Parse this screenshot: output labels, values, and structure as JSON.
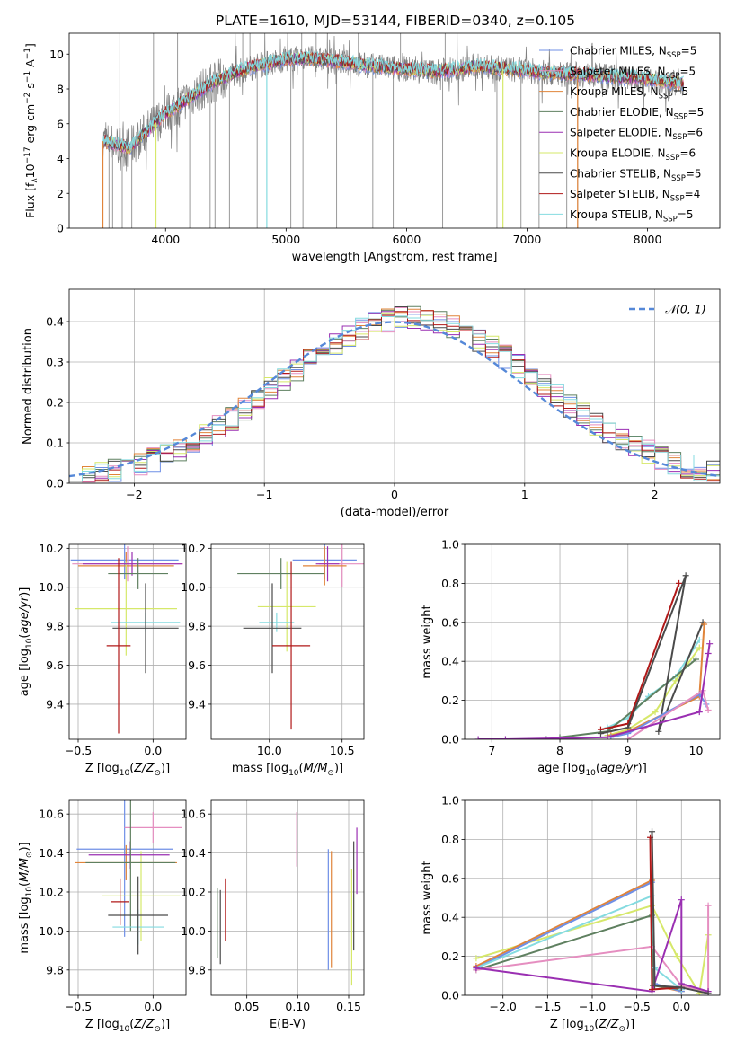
{
  "figure": {
    "title": "PLATE=1610, MJD=53144, FIBERID=0340, z=0.105"
  },
  "colors": {
    "chabrier_miles": "#6f8fe6",
    "salpeter_miles": "#e58ec0",
    "kroupa_miles": "#e0843a",
    "chabrier_elodie": "#5f8060",
    "salpeter_elodie": "#9a2fb2",
    "kroupa_elodie": "#d6e86a",
    "chabrier_stelib": "#4a4a4a",
    "salpeter_stelib": "#b01818",
    "kroupa_stelib": "#85dbe0",
    "gaussian": "#5588d8"
  },
  "chart_data": [
    {
      "id": "spectrum",
      "type": "line",
      "xlabel": "wavelength [Angstrom, rest frame]",
      "ylabel": "Flux [f_λ10^-17 erg cm^-2 s^-1 A^-1]",
      "xlim": [
        3200,
        8600
      ],
      "ylim": [
        0,
        11.2
      ],
      "xticks": [
        4000,
        5000,
        6000,
        7000,
        8000
      ],
      "yticks": [
        0,
        2,
        4,
        6,
        8,
        10
      ],
      "legend_position": "right",
      "legend": [
        {
          "text": "Chabrier MILES, N",
          "sub": "SSP",
          "tail": "=5",
          "color": "#6f8fe6"
        },
        {
          "text": "Salpeter MILES, N",
          "sub": "SSP",
          "tail": "=5",
          "color": "#e58ec0"
        },
        {
          "text": "Kroupa MILES, N",
          "sub": "SSP",
          "tail": "=5",
          "color": "#e0843a"
        },
        {
          "text": "Chabrier ELODIE, N",
          "sub": "SSP",
          "tail": "=5",
          "color": "#5f8060"
        },
        {
          "text": "Salpeter ELODIE, N",
          "sub": "SSP",
          "tail": "=6",
          "color": "#9a2fb2"
        },
        {
          "text": "Kroupa ELODIE, N",
          "sub": "SSP",
          "tail": "=6",
          "color": "#d6e86a"
        },
        {
          "text": "Chabrier STELIB, N",
          "sub": "SSP",
          "tail": "=5",
          "color": "#4a4a4a"
        },
        {
          "text": "Salpeter STELIB, N",
          "sub": "SSP",
          "tail": "=4",
          "color": "#b01818"
        },
        {
          "text": "Kroupa STELIB, N",
          "sub": "SSP",
          "tail": "=5",
          "color": "#85dbe0"
        }
      ],
      "continuum": [
        [
          3480,
          5.0
        ],
        [
          3700,
          4.6
        ],
        [
          3850,
          5.6
        ],
        [
          4000,
          6.6
        ],
        [
          4200,
          7.5
        ],
        [
          4400,
          8.4
        ],
        [
          4600,
          9.0
        ],
        [
          4800,
          9.4
        ],
        [
          5000,
          9.7
        ],
        [
          5200,
          9.75
        ],
        [
          5400,
          9.6
        ],
        [
          5600,
          9.4
        ],
        [
          5800,
          9.25
        ],
        [
          6000,
          9.15
        ],
        [
          6200,
          9.0
        ],
        [
          6400,
          9.1
        ],
        [
          6600,
          9.3
        ],
        [
          6800,
          9.15
        ],
        [
          7000,
          9.05
        ],
        [
          7200,
          8.9
        ],
        [
          7500,
          8.8
        ],
        [
          8000,
          8.55
        ],
        [
          8300,
          8.3
        ]
      ],
      "model_drops": [
        {
          "x": 3480,
          "color": "#e0843a"
        },
        {
          "x": 3920,
          "color": "#d6e86a"
        },
        {
          "x": 4840,
          "color": "#85dbe0"
        },
        {
          "x": 6800,
          "color": "#d6e86a"
        },
        {
          "x": 7420,
          "color": "#e0843a"
        }
      ],
      "data_spikes_down": [
        3530,
        3560,
        3640,
        3720,
        4200,
        4370,
        4410,
        4530,
        4760,
        5040,
        5140,
        5420,
        5720,
        5890,
        6300,
        6750,
        6950,
        7100,
        7330,
        7420
      ],
      "data_spikes_up": [
        3620,
        3900,
        4100,
        4640,
        4700,
        5130,
        5250,
        5600,
        5950,
        6320,
        6560
      ]
    },
    {
      "id": "residual_histogram",
      "type": "line",
      "xlabel": "(data-model)/error",
      "ylabel": "Normed distribution",
      "xlim": [
        -2.5,
        2.5
      ],
      "ylim": [
        0,
        0.48
      ],
      "xticks": [
        -2,
        -1,
        0,
        1,
        2
      ],
      "yticks": [
        0,
        0.1,
        0.2,
        0.3,
        0.4
      ],
      "legend_position": "upper right",
      "gaussian_label": "𝒩(0, 1)",
      "bin_width": 0.1
    },
    {
      "id": "age_vs_Z",
      "type": "scatter",
      "xlabel": "Z [log₁₀(Z/Z⊙)]",
      "ylabel": "age  [log₁₀(age/yr)]",
      "xlim": [
        -0.56,
        0.22
      ],
      "ylim": [
        9.22,
        10.22
      ],
      "xticks": [
        -0.5,
        0.0
      ],
      "yticks": [
        9.4,
        9.6,
        9.8,
        10.0,
        10.2
      ],
      "points": [
        {
          "x": -0.19,
          "y": 10.14,
          "xerr": 0.36,
          "yerr": 0.1,
          "color": "#6f8fe6"
        },
        {
          "x": -0.17,
          "y": 10.12,
          "xerr": 0.37,
          "yerr": 0.09,
          "color": "#e58ec0"
        },
        {
          "x": -0.18,
          "y": 10.11,
          "xerr": 0.32,
          "yerr": 0.07,
          "color": "#e0843a"
        },
        {
          "x": -0.18,
          "y": 9.89,
          "xerr": 0.34,
          "yerr": 0.24,
          "color": "#d6e86a"
        },
        {
          "x": -0.14,
          "y": 10.12,
          "xerr": 0.33,
          "yerr": 0.06,
          "color": "#9a2fb2"
        },
        {
          "x": -0.1,
          "y": 10.07,
          "xerr": 0.2,
          "yerr": 0.08,
          "color": "#5f8060"
        },
        {
          "x": -0.05,
          "y": 9.82,
          "xerr": 0.23,
          "yerr": 0.05,
          "color": "#85dbe0"
        },
        {
          "x": -0.05,
          "y": 9.79,
          "xerr": 0.22,
          "yerr": 0.23,
          "color": "#4a4a4a"
        },
        {
          "x": -0.23,
          "y": 9.7,
          "xerr": 0.08,
          "yerr": 0.45,
          "color": "#b01818"
        }
      ]
    },
    {
      "id": "age_vs_mass",
      "type": "scatter",
      "xlabel": "mass [log₁₀(M/M⊙)]",
      "ylabel": "",
      "xlim": [
        9.6,
        10.65
      ],
      "ylim": [
        9.22,
        10.22
      ],
      "xticks": [
        10.0,
        10.5
      ],
      "yticks": [
        9.4,
        9.6,
        9.8,
        10.0,
        10.2
      ],
      "points": [
        {
          "x": 10.38,
          "y": 10.14,
          "xerr": 0.22,
          "yerr": 0.1,
          "color": "#6f8fe6"
        },
        {
          "x": 10.5,
          "y": 10.12,
          "xerr": 0.16,
          "yerr": 0.12,
          "color": "#e58ec0"
        },
        {
          "x": 10.38,
          "y": 10.11,
          "xerr": 0.15,
          "yerr": 0.1,
          "color": "#e0843a"
        },
        {
          "x": 10.12,
          "y": 9.9,
          "xerr": 0.2,
          "yerr": 0.23,
          "color": "#d6e86a"
        },
        {
          "x": 10.4,
          "y": 10.12,
          "xerr": 0.08,
          "yerr": 0.09,
          "color": "#9a2fb2"
        },
        {
          "x": 10.08,
          "y": 10.07,
          "xerr": 0.3,
          "yerr": 0.08,
          "color": "#5f8060"
        },
        {
          "x": 10.05,
          "y": 9.82,
          "xerr": 0.12,
          "yerr": 0.05,
          "color": "#85dbe0"
        },
        {
          "x": 10.02,
          "y": 9.79,
          "xerr": 0.2,
          "yerr": 0.23,
          "color": "#4a4a4a"
        },
        {
          "x": 10.15,
          "y": 9.7,
          "xerr": 0.13,
          "yerr": 0.43,
          "color": "#b01818"
        }
      ]
    },
    {
      "id": "mass_weight_vs_age",
      "type": "line",
      "xlabel": "age  [log₁₀(age/yr)]",
      "ylabel": "mass weight",
      "xlim": [
        6.6,
        10.35
      ],
      "ylim": [
        0,
        1.0
      ],
      "xticks": [
        7,
        8,
        9,
        10
      ],
      "yticks": [
        0.0,
        0.2,
        0.4,
        0.6,
        0.8,
        1.0
      ],
      "series": [
        {
          "color": "#85dbe0",
          "x": [
            8.7,
            9.0,
            9.3,
            9.7,
            10.05
          ],
          "y": [
            0.06,
            0.11,
            0.22,
            0.32,
            0.51
          ]
        },
        {
          "color": "#d6e86a",
          "x": [
            8.7,
            9.0,
            9.4,
            9.7,
            10.05
          ],
          "y": [
            0.02,
            0.05,
            0.14,
            0.3,
            0.47
          ]
        },
        {
          "color": "#5f8060",
          "x": [
            7.8,
            8.0,
            8.7,
            10.0
          ],
          "y": [
            0.0,
            0.01,
            0.04,
            0.41
          ]
        },
        {
          "color": "#b01818",
          "x": [
            8.6,
            9.0,
            9.75
          ],
          "y": [
            0.05,
            0.08,
            0.8
          ]
        },
        {
          "color": "#4a4a4a",
          "x": [
            8.6,
            9.0,
            9.85,
            9.45,
            10.1
          ],
          "y": [
            0.03,
            0.06,
            0.84,
            0.04,
            0.6
          ]
        },
        {
          "color": "#e0843a",
          "x": [
            8.75,
            9.0,
            10.05,
            10.12
          ],
          "y": [
            0.02,
            0.04,
            0.22,
            0.59
          ]
        },
        {
          "color": "#6f8fe6",
          "x": [
            8.75,
            9.0,
            10.05,
            10.15
          ],
          "y": [
            0.01,
            0.03,
            0.23,
            0.18
          ]
        },
        {
          "color": "#e58ec0",
          "x": [
            9.0,
            10.1,
            10.18
          ],
          "y": [
            0.0,
            0.25,
            0.15
          ]
        },
        {
          "color": "#9a2fb2",
          "x": [
            6.8,
            7.2,
            8.7,
            10.05,
            10.18,
            10.2
          ],
          "y": [
            0.0,
            0.0,
            0.01,
            0.14,
            0.44,
            0.49
          ]
        }
      ]
    },
    {
      "id": "mass_vs_Z",
      "type": "scatter",
      "xlabel": "Z [log₁₀(Z/Z⊙)]",
      "ylabel": "mass [log₁₀(M/M⊙)]",
      "xlim": [
        -0.56,
        0.22
      ],
      "ylim": [
        9.67,
        10.67
      ],
      "xticks": [
        -0.5,
        0.0
      ],
      "yticks": [
        9.8,
        10.0,
        10.2,
        10.4,
        10.6
      ],
      "points": [
        {
          "x": -0.19,
          "y": 10.42,
          "xerr": 0.32,
          "yerr": 0.45,
          "color": "#6f8fe6"
        },
        {
          "x": 0.0,
          "y": 10.53,
          "xerr": 0.19,
          "yerr": 0.08,
          "color": "#e58ec0"
        },
        {
          "x": -0.18,
          "y": 10.35,
          "xerr": 0.34,
          "yerr": 0.09,
          "color": "#e0843a"
        },
        {
          "x": -0.08,
          "y": 10.18,
          "xerr": 0.26,
          "yerr": 0.23,
          "color": "#d6e86a"
        },
        {
          "x": -0.16,
          "y": 10.39,
          "xerr": 0.27,
          "yerr": 0.07,
          "color": "#9a2fb2"
        },
        {
          "x": -0.15,
          "y": 10.35,
          "xerr": 0.3,
          "yerr": 0.35,
          "color": "#5f8060"
        },
        {
          "x": -0.1,
          "y": 10.02,
          "xerr": 0.17,
          "yerr": 0.09,
          "color": "#85dbe0"
        },
        {
          "x": -0.1,
          "y": 10.08,
          "xerr": 0.2,
          "yerr": 0.2,
          "color": "#4a4a4a"
        },
        {
          "x": -0.22,
          "y": 10.15,
          "xerr": 0.06,
          "yerr": 0.12,
          "color": "#b01818"
        }
      ]
    },
    {
      "id": "mass_vs_ebv",
      "type": "scatter",
      "xlabel": "E(B-V)",
      "ylabel": "",
      "xlim": [
        0.015,
        0.165
      ],
      "ylim": [
        9.67,
        10.67
      ],
      "xticks": [
        0.05,
        0.1,
        0.15
      ],
      "yticks": [
        9.8,
        10.0,
        10.2,
        10.4,
        10.6
      ],
      "points": [
        {
          "x": 0.021,
          "y": 10.04,
          "yerr": 0.18,
          "color": "#5f8060"
        },
        {
          "x": 0.024,
          "y": 10.02,
          "yerr": 0.19,
          "color": "#4a4a4a"
        },
        {
          "x": 0.029,
          "y": 10.11,
          "yerr": 0.16,
          "color": "#b01818"
        },
        {
          "x": 0.099,
          "y": 10.47,
          "yerr": 0.14,
          "color": "#e58ec0"
        },
        {
          "x": 0.13,
          "y": 10.11,
          "yerr": 0.31,
          "color": "#6f8fe6"
        },
        {
          "x": 0.133,
          "y": 10.11,
          "yerr": 0.3,
          "color": "#e0843a"
        },
        {
          "x": 0.153,
          "y": 10.02,
          "yerr": 0.3,
          "color": "#d6e86a"
        },
        {
          "x": 0.155,
          "y": 10.18,
          "yerr": 0.28,
          "color": "#4a4a4a"
        },
        {
          "x": 0.158,
          "y": 10.36,
          "yerr": 0.17,
          "color": "#9a2fb2"
        }
      ]
    },
    {
      "id": "mass_weight_vs_Z",
      "type": "line",
      "xlabel": "Z [log₁₀(Z/Z⊙)]",
      "ylabel": "mass weight",
      "xlim": [
        -2.43,
        0.43
      ],
      "ylim": [
        0,
        1.0
      ],
      "xticks": [
        -2.0,
        -1.5,
        -1.0,
        -0.5,
        0.0
      ],
      "yticks": [
        0.0,
        0.2,
        0.4,
        0.6,
        0.8,
        1.0
      ],
      "series": [
        {
          "color": "#d6e86a",
          "x": [
            -2.3,
            -0.33,
            -0.05,
            0.2,
            0.3
          ],
          "y": [
            0.19,
            0.46,
            0.2,
            0.01,
            0.31
          ]
        },
        {
          "color": "#e0843a",
          "x": [
            -2.3,
            -0.33,
            -0.3,
            0.0
          ],
          "y": [
            0.15,
            0.59,
            0.05,
            0.02
          ]
        },
        {
          "color": "#6f8fe6",
          "x": [
            -2.3,
            -0.33,
            -0.3,
            0.0
          ],
          "y": [
            0.14,
            0.58,
            0.06,
            0.02
          ]
        },
        {
          "color": "#5f8060",
          "x": [
            -2.3,
            -0.33,
            -0.32,
            0.0
          ],
          "y": [
            0.13,
            0.41,
            0.05,
            0.03
          ]
        },
        {
          "color": "#85dbe0",
          "x": [
            -2.3,
            -0.33,
            -0.3,
            0.0
          ],
          "y": [
            0.14,
            0.51,
            0.14,
            0.03
          ]
        },
        {
          "color": "#e58ec0",
          "x": [
            -2.3,
            -0.33,
            0.0,
            0.3,
            0.3
          ],
          "y": [
            0.13,
            0.25,
            0.05,
            0.02,
            0.46
          ]
        },
        {
          "color": "#9a2fb2",
          "x": [
            -2.3,
            -0.33,
            0.0,
            0.0,
            0.3
          ],
          "y": [
            0.14,
            0.02,
            0.49,
            0.06,
            0.02
          ]
        },
        {
          "color": "#b01818",
          "x": [
            -0.35,
            -0.33,
            0.0
          ],
          "y": [
            0.81,
            0.03,
            0.04
          ]
        },
        {
          "color": "#4a4a4a",
          "x": [
            -0.33,
            -0.3,
            0.0,
            0.3
          ],
          "y": [
            0.84,
            0.05,
            0.04,
            0.01
          ]
        }
      ]
    }
  ]
}
